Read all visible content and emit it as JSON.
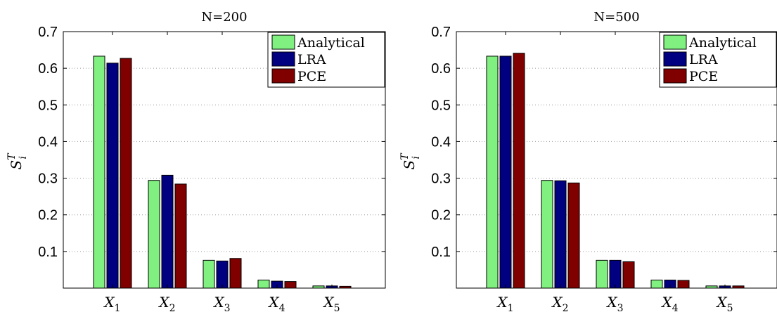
{
  "chart_data": [
    {
      "type": "bar",
      "title": "N=200",
      "ylabel": {
        "base": "S",
        "sub": "i",
        "sup": "T"
      },
      "categories": [
        {
          "base": "X",
          "sub": "1"
        },
        {
          "base": "X",
          "sub": "2"
        },
        {
          "base": "X",
          "sub": "3"
        },
        {
          "base": "X",
          "sub": "4"
        },
        {
          "base": "X",
          "sub": "5"
        }
      ],
      "series": [
        {
          "name": "Analytical",
          "color": "#80f080",
          "values": [
            0.633,
            0.294,
            0.076,
            0.022,
            0.006
          ]
        },
        {
          "name": "LRA",
          "color": "#000080",
          "values": [
            0.614,
            0.308,
            0.074,
            0.019,
            0.006
          ]
        },
        {
          "name": "PCE",
          "color": "#800000",
          "values": [
            0.627,
            0.284,
            0.081,
            0.018,
            0.005
          ]
        }
      ],
      "ylim": [
        0,
        0.7
      ],
      "yticks": [
        "0.1",
        "0.2",
        "0.3",
        "0.4",
        "0.5",
        "0.6",
        "0.7"
      ],
      "grid": "y-dotted",
      "legend": "top-right"
    },
    {
      "type": "bar",
      "title": "N=500",
      "ylabel": {
        "base": "S",
        "sub": "i",
        "sup": "T"
      },
      "categories": [
        {
          "base": "X",
          "sub": "1"
        },
        {
          "base": "X",
          "sub": "2"
        },
        {
          "base": "X",
          "sub": "3"
        },
        {
          "base": "X",
          "sub": "4"
        },
        {
          "base": "X",
          "sub": "5"
        }
      ],
      "series": [
        {
          "name": "Analytical",
          "color": "#80f080",
          "values": [
            0.633,
            0.294,
            0.076,
            0.022,
            0.006
          ]
        },
        {
          "name": "LRA",
          "color": "#000080",
          "values": [
            0.633,
            0.293,
            0.076,
            0.022,
            0.006
          ]
        },
        {
          "name": "PCE",
          "color": "#800000",
          "values": [
            0.641,
            0.287,
            0.072,
            0.021,
            0.006
          ]
        }
      ],
      "ylim": [
        0,
        0.7
      ],
      "yticks": [
        "0.1",
        "0.2",
        "0.3",
        "0.4",
        "0.5",
        "0.6",
        "0.7"
      ],
      "grid": "y-dotted",
      "legend": "top-right"
    }
  ]
}
